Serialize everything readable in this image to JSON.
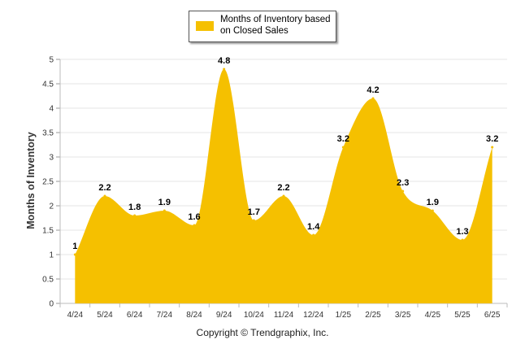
{
  "legend": {
    "label": "Months of Inventory based on Closed Sales",
    "color": "#F5C000"
  },
  "footer": {
    "copyright": "Copyright © Trendgraphix, Inc."
  },
  "chart_data": {
    "type": "area",
    "title": "",
    "xlabel": "",
    "ylabel": "Months of Inventory",
    "categories": [
      "4/24",
      "5/24",
      "6/24",
      "7/24",
      "8/24",
      "9/24",
      "10/24",
      "11/24",
      "12/24",
      "1/25",
      "2/25",
      "3/25",
      "4/25",
      "5/25",
      "6/25"
    ],
    "series": [
      {
        "name": "Months of Inventory based on Closed Sales",
        "values": [
          1,
          2.2,
          1.8,
          1.9,
          1.6,
          4.8,
          1.7,
          2.2,
          1.4,
          3.2,
          4.2,
          2.3,
          1.9,
          1.3,
          3.2
        ],
        "labels": [
          "1",
          "2.2",
          "1.8",
          "1.9",
          "1.6",
          "4.8",
          "1.7",
          "2.2",
          "1.4",
          "3.2",
          "4.2",
          "2.3",
          "1.9",
          "1.3",
          "3.2"
        ]
      }
    ],
    "ylim": [
      0,
      5
    ],
    "yticks": [
      "0",
      "0.5",
      "1",
      "1.5",
      "2",
      "2.5",
      "3",
      "3.5",
      "4",
      "4.5",
      "5"
    ],
    "grid": true,
    "legend_position": "top-center",
    "fill_color": "#F5C000"
  }
}
